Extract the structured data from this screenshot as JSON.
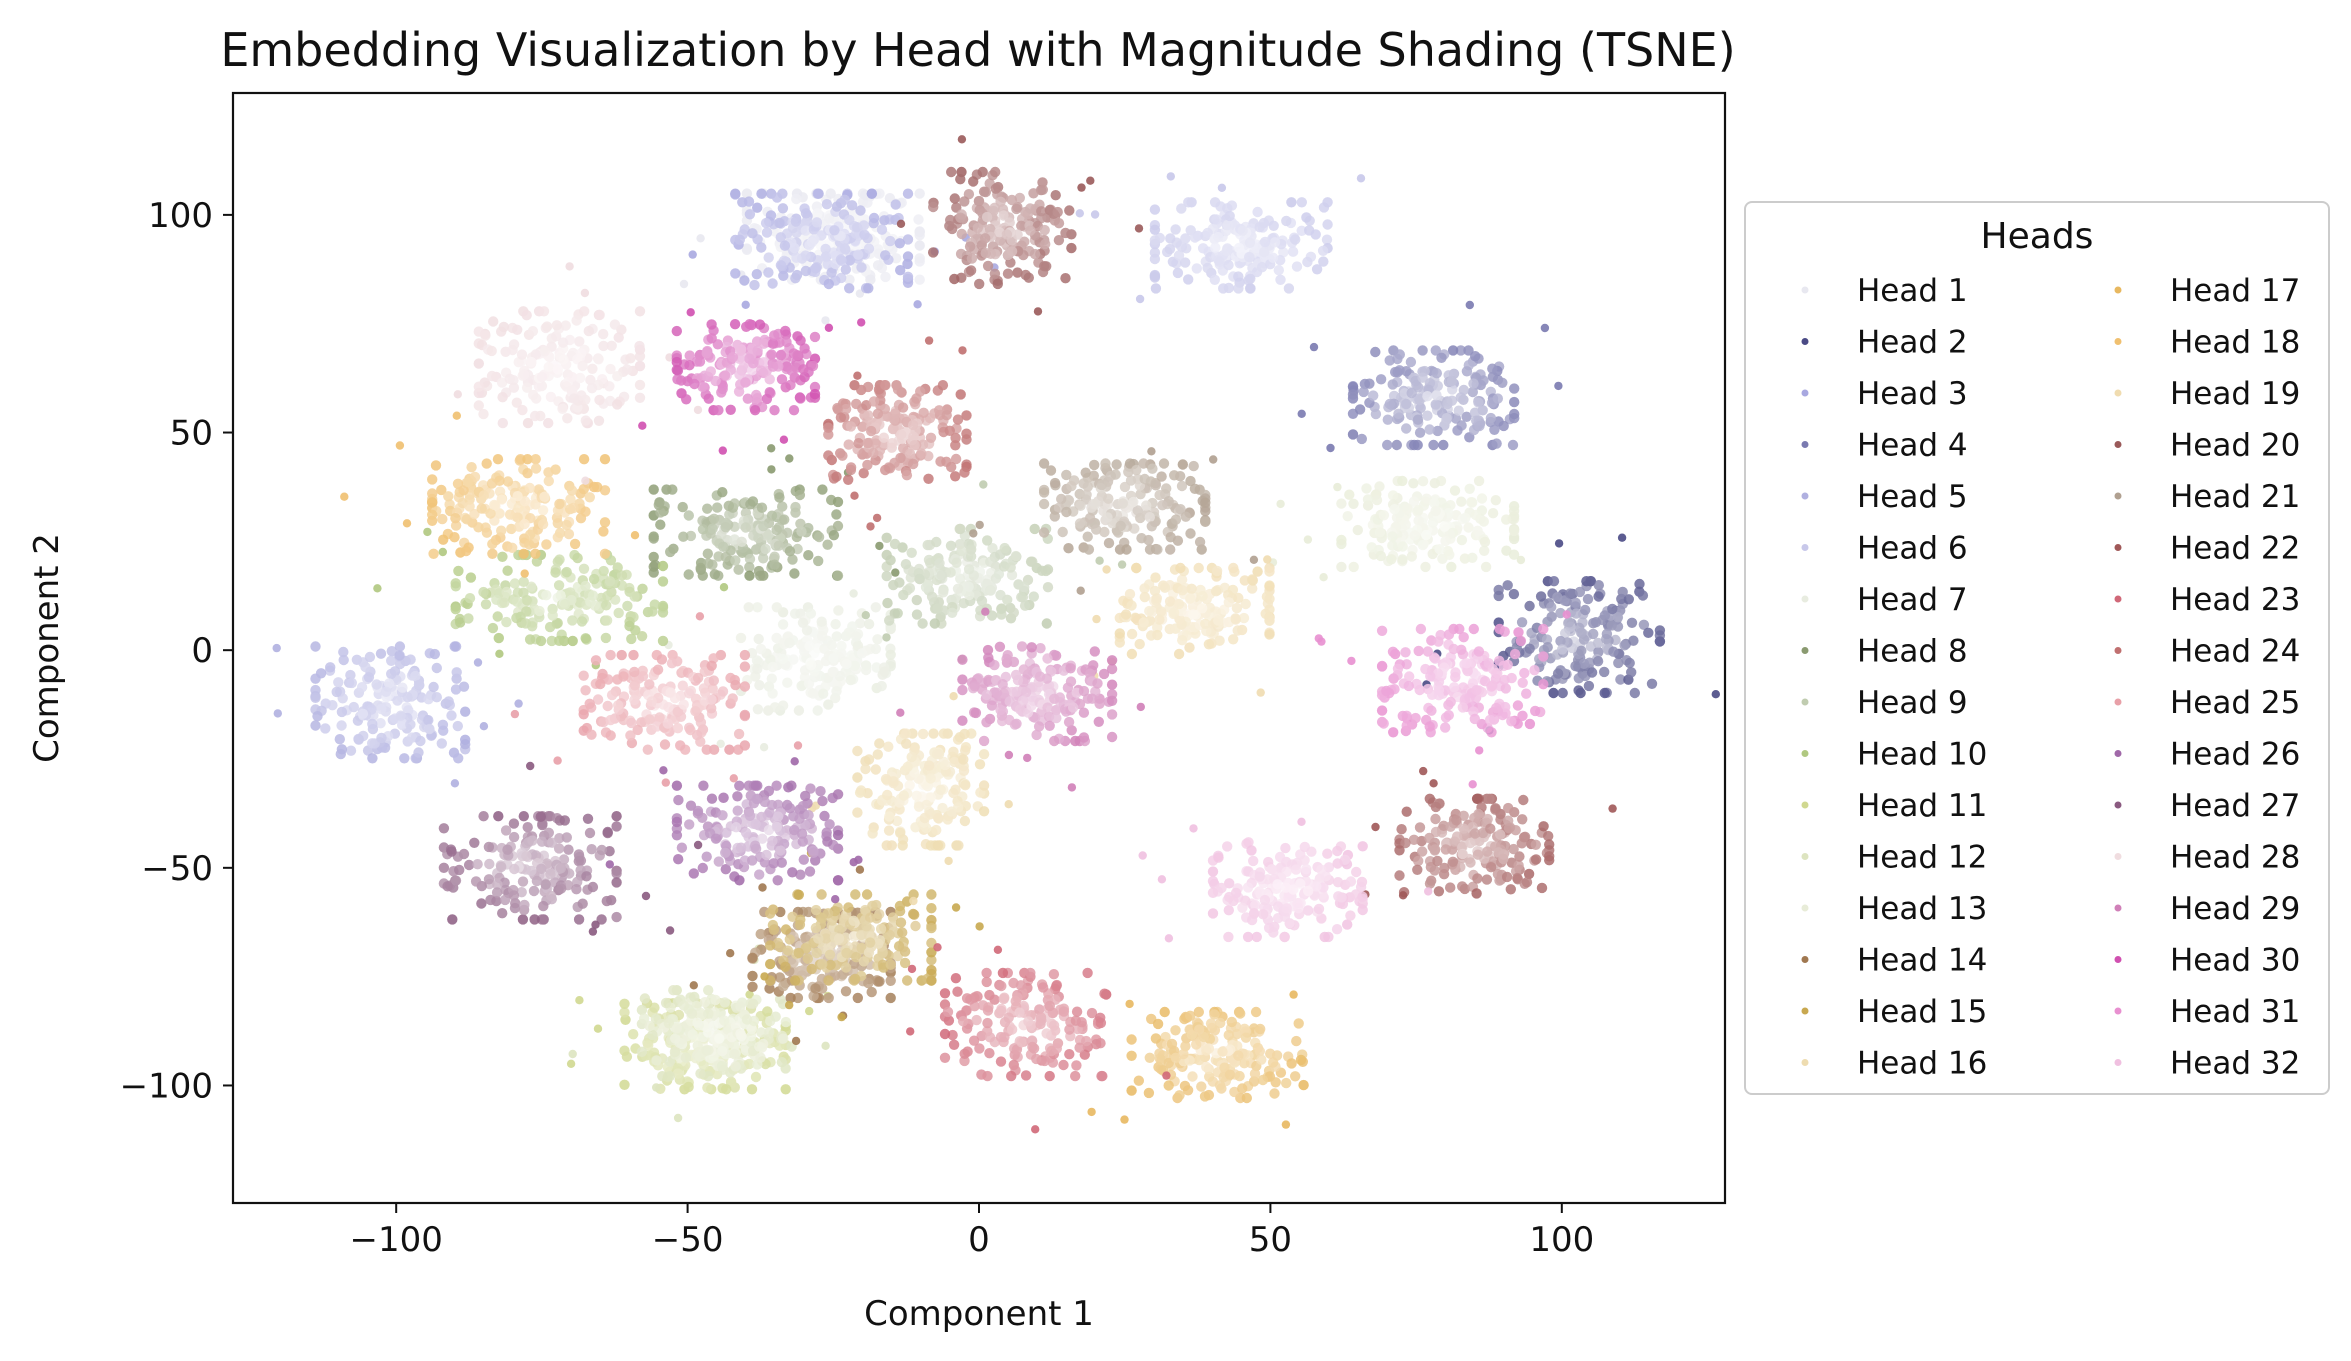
{
  "chart_data": {
    "type": "scatter",
    "title": "Embedding Visualization by Head with Magnitude Shading (TSNE)",
    "xlabel": "Component 1",
    "ylabel": "Component 2",
    "xlim": [
      -128,
      128
    ],
    "ylim": [
      -127,
      128
    ],
    "xticks": [
      -100,
      -50,
      0,
      50,
      100
    ],
    "yticks": [
      -100,
      -50,
      0,
      50,
      100
    ],
    "xtick_labels": [
      "−100",
      "−50",
      "0",
      "50",
      "100"
    ],
    "ytick_labels": [
      "−100",
      "−50",
      "0",
      "50",
      "100"
    ],
    "grid": false,
    "legend": {
      "title": "Heads",
      "location": "outside-right",
      "columns": 2
    },
    "series": [
      {
        "name": "Head 1",
        "color": "#e8e8f0",
        "center": [
          -25,
          95
        ],
        "spread": [
          15,
          10
        ]
      },
      {
        "name": "Head 2",
        "color": "#4a4a85",
        "center": [
          103,
          3
        ],
        "spread": [
          14,
          13
        ]
      },
      {
        "name": "Head 3",
        "color": "#a8a8e0",
        "center": [
          -27,
          94
        ],
        "spread": [
          15,
          11
        ]
      },
      {
        "name": "Head 4",
        "color": "#7a7ab0",
        "center": [
          78,
          58
        ],
        "spread": [
          14,
          11
        ]
      },
      {
        "name": "Head 5",
        "color": "#b0b0e0",
        "center": [
          -101,
          -12
        ],
        "spread": [
          13,
          13
        ]
      },
      {
        "name": "Head 6",
        "color": "#c8c8ea",
        "center": [
          45,
          93
        ],
        "spread": [
          15,
          10
        ]
      },
      {
        "name": "Head 7",
        "color": "#e8ece0",
        "center": [
          -28,
          -2
        ],
        "spread": [
          13,
          12
        ]
      },
      {
        "name": "Head 8",
        "color": "#8a9a70",
        "center": [
          -40,
          27
        ],
        "spread": [
          16,
          10
        ]
      },
      {
        "name": "Head 9",
        "color": "#c0ccb0",
        "center": [
          -2,
          17
        ],
        "spread": [
          14,
          11
        ]
      },
      {
        "name": "Head 10",
        "color": "#b0c880",
        "center": [
          -72,
          12
        ],
        "spread": [
          18,
          10
        ]
      },
      {
        "name": "Head 11",
        "color": "#d0d890",
        "center": [
          -47,
          -91
        ],
        "spread": [
          14,
          10
        ]
      },
      {
        "name": "Head 12",
        "color": "#dde4c0",
        "center": [
          -45,
          -88
        ],
        "spread": [
          13,
          10
        ]
      },
      {
        "name": "Head 13",
        "color": "#e8ecd8",
        "center": [
          77,
          29
        ],
        "spread": [
          15,
          10
        ]
      },
      {
        "name": "Head 14",
        "color": "#a07850",
        "center": [
          -27,
          -70
        ],
        "spread": [
          12,
          10
        ]
      },
      {
        "name": "Head 15",
        "color": "#c8a850",
        "center": [
          -22,
          -66
        ],
        "spread": [
          14,
          10
        ]
      },
      {
        "name": "Head 16",
        "color": "#eedcb0",
        "center": [
          -10,
          -32
        ],
        "spread": [
          11,
          13
        ]
      },
      {
        "name": "Head 17",
        "color": "#e8b860",
        "center": [
          41,
          -93
        ],
        "spread": [
          15,
          10
        ]
      },
      {
        "name": "Head 18",
        "color": "#f0c070",
        "center": [
          -79,
          33
        ],
        "spread": [
          15,
          11
        ]
      },
      {
        "name": "Head 19",
        "color": "#f0dcb0",
        "center": [
          37,
          9
        ],
        "spread": [
          13,
          10
        ]
      },
      {
        "name": "Head 20",
        "color": "#9a5a5a",
        "center": [
          4,
          97
        ],
        "spread": [
          12,
          13
        ]
      },
      {
        "name": "Head 21",
        "color": "#b0a090",
        "center": [
          25,
          33
        ],
        "spread": [
          14,
          10
        ]
      },
      {
        "name": "Head 22",
        "color": "#a05858",
        "center": [
          85,
          -45
        ],
        "spread": [
          13,
          11
        ]
      },
      {
        "name": "Head 23",
        "color": "#d06878",
        "center": [
          8,
          -86
        ],
        "spread": [
          14,
          12
        ]
      },
      {
        "name": "Head 24",
        "color": "#c07070",
        "center": [
          -14,
          50
        ],
        "spread": [
          12,
          11
        ]
      },
      {
        "name": "Head 25",
        "color": "#e8a0a8",
        "center": [
          -54,
          -12
        ],
        "spread": [
          14,
          11
        ]
      },
      {
        "name": "Head 26",
        "color": "#a068a8",
        "center": [
          -38,
          -42
        ],
        "spread": [
          14,
          11
        ]
      },
      {
        "name": "Head 27",
        "color": "#8a5a80",
        "center": [
          -77,
          -50
        ],
        "spread": [
          15,
          12
        ]
      },
      {
        "name": "Head 28",
        "color": "#f0dde0",
        "center": [
          -72,
          65
        ],
        "spread": [
          14,
          13
        ]
      },
      {
        "name": "Head 29",
        "color": "#d080b8",
        "center": [
          10,
          -10
        ],
        "spread": [
          13,
          11
        ]
      },
      {
        "name": "Head 30",
        "color": "#d050b0",
        "center": [
          -40,
          65
        ],
        "spread": [
          12,
          10
        ]
      },
      {
        "name": "Head 31",
        "color": "#e890d0",
        "center": [
          83,
          -7
        ],
        "spread": [
          14,
          12
        ]
      },
      {
        "name": "Head 32",
        "color": "#f0c0e0",
        "center": [
          53,
          -55
        ],
        "spread": [
          13,
          11
        ]
      }
    ]
  }
}
